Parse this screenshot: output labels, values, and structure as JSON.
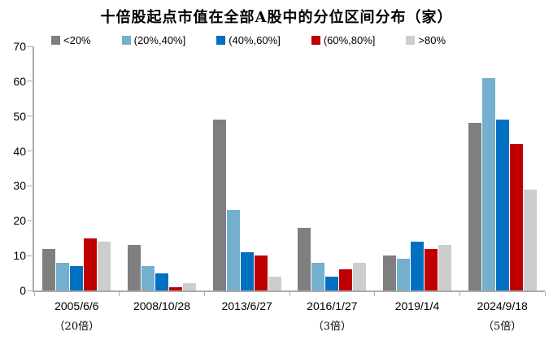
{
  "chart_data": {
    "type": "bar",
    "title": "十倍股起点市值在全部A股中的分位区间分布（家）",
    "categories": [
      "2005/6/6",
      "2008/10/28",
      "2013/6/27",
      "2016/1/27",
      "2019/1/4",
      "2024/9/18"
    ],
    "category_sublabels": [
      "（20倍）",
      "",
      "",
      "（3倍）",
      "",
      "（5倍）"
    ],
    "series": [
      {
        "name": "<20%",
        "color": "#7F7F7F",
        "values": [
          12,
          13,
          49,
          18,
          10,
          48
        ]
      },
      {
        "name": "(20%,40%]",
        "color": "#74AFCD",
        "values": [
          8,
          7,
          23,
          8,
          9,
          61
        ]
      },
      {
        "name": "(40%,60%]",
        "color": "#0070C0",
        "values": [
          7,
          5,
          11,
          4,
          14,
          49
        ]
      },
      {
        "name": "(60%,80%]",
        "color": "#C00000",
        "values": [
          15,
          1,
          10,
          6,
          12,
          42
        ]
      },
      {
        "name": ">80%",
        "color": "#CDCDCD",
        "values": [
          14,
          2,
          4,
          8,
          13,
          29
        ]
      }
    ],
    "xlabel": "",
    "ylabel": "",
    "ylim": [
      0,
      70
    ],
    "yticks": [
      0,
      10,
      20,
      30,
      40,
      50,
      60,
      70
    ],
    "grid": false,
    "legend_position": "top",
    "axis_color": "#ABABAB"
  }
}
